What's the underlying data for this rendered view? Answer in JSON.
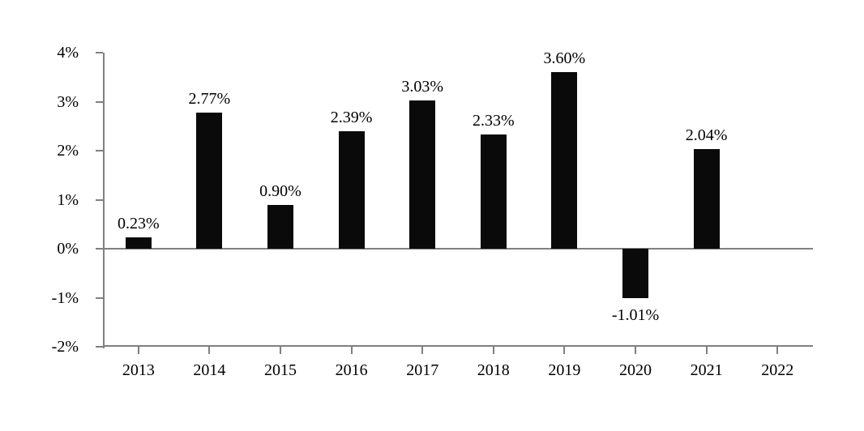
{
  "chart_data": {
    "type": "bar",
    "categories": [
      "2013",
      "2014",
      "2015",
      "2016",
      "2017",
      "2018",
      "2019",
      "2020",
      "2021",
      "2022"
    ],
    "values": [
      0.23,
      2.77,
      0.9,
      2.39,
      3.03,
      2.33,
      3.6,
      -1.01,
      2.04,
      null
    ],
    "data_labels": [
      "0.23%",
      "2.77%",
      "0.90%",
      "2.39%",
      "3.03%",
      "2.33%",
      "3.60%",
      "-1.01%",
      "2.04%",
      ""
    ],
    "y_ticks": [
      {
        "value": 4,
        "label": "4%"
      },
      {
        "value": 3,
        "label": "3%"
      },
      {
        "value": 2,
        "label": "2%"
      },
      {
        "value": 1,
        "label": "1%"
      },
      {
        "value": 0,
        "label": "0%"
      },
      {
        "value": -1,
        "label": "-1%"
      },
      {
        "value": -2,
        "label": "-2%"
      }
    ],
    "ylim": [
      -2,
      4
    ],
    "grid": false,
    "legend": false,
    "bar_color": "#0a0a0a",
    "axis_color": "#808080",
    "text_color": "#000000"
  }
}
